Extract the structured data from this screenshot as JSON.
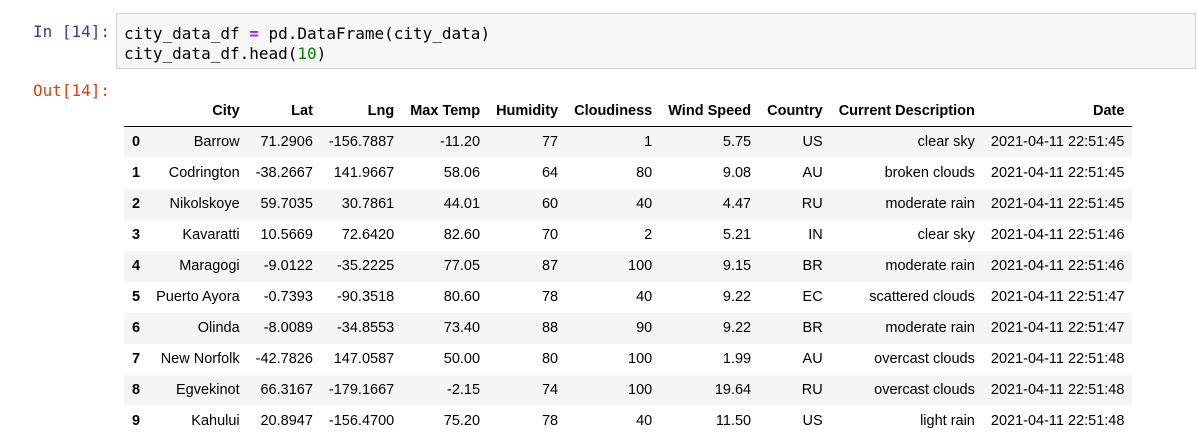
{
  "cell": {
    "in_prompt": "In [14]:",
    "out_prompt": "Out[14]:",
    "code": {
      "line1_var": "city_data_df",
      "line1_op": "=",
      "line1_rhs": "pd.DataFrame(city_data)",
      "line2_prefix": "city_data_df.head(",
      "line2_arg": "10",
      "line2_suffix": ")"
    }
  },
  "table": {
    "columns": [
      "",
      "City",
      "Lat",
      "Lng",
      "Max Temp",
      "Humidity",
      "Cloudiness",
      "Wind Speed",
      "Country",
      "Current Description",
      "Date"
    ],
    "rows": [
      {
        "index": "0",
        "cells": [
          "Barrow",
          "71.2906",
          "-156.7887",
          "-11.20",
          "77",
          "1",
          "5.75",
          "US",
          "clear sky",
          "2021-04-11 22:51:45"
        ]
      },
      {
        "index": "1",
        "cells": [
          "Codrington",
          "-38.2667",
          "141.9667",
          "58.06",
          "64",
          "80",
          "9.08",
          "AU",
          "broken clouds",
          "2021-04-11 22:51:45"
        ]
      },
      {
        "index": "2",
        "cells": [
          "Nikolskoye",
          "59.7035",
          "30.7861",
          "44.01",
          "60",
          "40",
          "4.47",
          "RU",
          "moderate rain",
          "2021-04-11 22:51:45"
        ]
      },
      {
        "index": "3",
        "cells": [
          "Kavaratti",
          "10.5669",
          "72.6420",
          "82.60",
          "70",
          "2",
          "5.21",
          "IN",
          "clear sky",
          "2021-04-11 22:51:46"
        ]
      },
      {
        "index": "4",
        "cells": [
          "Maragogi",
          "-9.0122",
          "-35.2225",
          "77.05",
          "87",
          "100",
          "9.15",
          "BR",
          "moderate rain",
          "2021-04-11 22:51:46"
        ]
      },
      {
        "index": "5",
        "cells": [
          "Puerto Ayora",
          "-0.7393",
          "-90.3518",
          "80.60",
          "78",
          "40",
          "9.22",
          "EC",
          "scattered clouds",
          "2021-04-11 22:51:47"
        ]
      },
      {
        "index": "6",
        "cells": [
          "Olinda",
          "-8.0089",
          "-34.8553",
          "73.40",
          "88",
          "90",
          "9.22",
          "BR",
          "moderate rain",
          "2021-04-11 22:51:47"
        ]
      },
      {
        "index": "7",
        "cells": [
          "New Norfolk",
          "-42.7826",
          "147.0587",
          "50.00",
          "80",
          "100",
          "1.99",
          "AU",
          "overcast clouds",
          "2021-04-11 22:51:48"
        ]
      },
      {
        "index": "8",
        "cells": [
          "Egvekinot",
          "66.3167",
          "-179.1667",
          "-2.15",
          "74",
          "100",
          "19.64",
          "RU",
          "overcast clouds",
          "2021-04-11 22:51:48"
        ]
      },
      {
        "index": "9",
        "cells": [
          "Kahului",
          "20.8947",
          "-156.4700",
          "75.20",
          "78",
          "40",
          "11.50",
          "US",
          "light rain",
          "2021-04-11 22:51:48"
        ]
      }
    ]
  }
}
